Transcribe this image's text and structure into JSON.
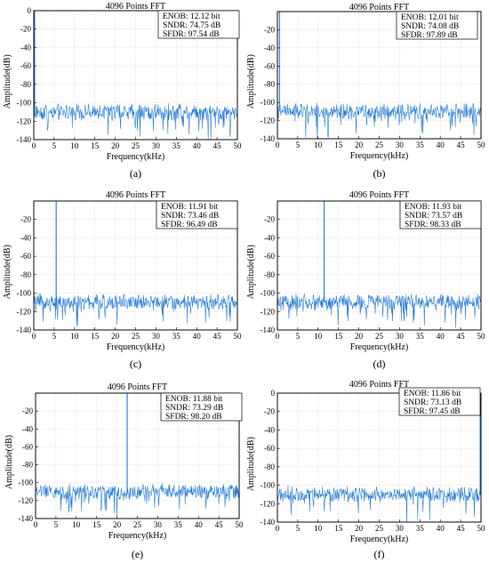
{
  "colors": {
    "trace": "#1f77d4",
    "frame": "#000000"
  },
  "chart_data": [
    {
      "type": "line",
      "label": "(a)",
      "title": "4096 Points FFT",
      "xlabel": "Frequency(kHz)",
      "ylabel": "Amplitude(dB)",
      "xlim": [
        0,
        50
      ],
      "ylim": [
        -140,
        0
      ],
      "xticks": [
        0,
        5,
        10,
        15,
        20,
        25,
        30,
        35,
        40,
        45,
        50
      ],
      "yticks": [
        0,
        -20,
        -40,
        -60,
        -80,
        -100,
        -120,
        -140
      ],
      "grid": true,
      "stats": [
        "ENOB: 12.12 bit",
        "SNDR: 74.75 dB",
        "SFDR: 97.54 dB"
      ],
      "signal_tone": {
        "freq_khz": 0.2,
        "amplitude_db": 0
      },
      "noise_floor_db": -110
    },
    {
      "type": "line",
      "label": "(b)",
      "title": "4096 Points FFT",
      "xlabel": "Frequency(kHz)",
      "ylabel": "Amplitude(dB)",
      "xlim": [
        0,
        50
      ],
      "ylim": [
        -140,
        0
      ],
      "xticks": [
        0,
        5,
        10,
        15,
        20,
        25,
        30,
        35,
        40,
        45,
        50
      ],
      "yticks": [
        -20,
        -40,
        -60,
        -80,
        -100,
        -120,
        -140
      ],
      "grid": true,
      "stats": [
        "ENOB: 12.01 bit",
        "SNDR: 74.08 dB",
        "SFDR: 97.89 dB"
      ],
      "signal_tone": {
        "freq_khz": 0.5,
        "amplitude_db": 0
      },
      "noise_floor_db": -110
    },
    {
      "type": "line",
      "label": "(c)",
      "title": "4096 Points FFT",
      "xlabel": "Frequency(kHz)",
      "ylabel": "Amplitude(dB)",
      "xlim": [
        0,
        50
      ],
      "ylim": [
        -140,
        0
      ],
      "xticks": [
        0,
        5,
        10,
        15,
        20,
        25,
        30,
        35,
        40,
        45,
        50
      ],
      "yticks": [
        -20,
        -40,
        -60,
        -80,
        -100,
        -120,
        -140
      ],
      "grid": true,
      "stats": [
        "ENOB: 11.91 bit",
        "SNDR: 73.46 dB",
        "SFDR: 96.49 dB"
      ],
      "signal_tone": {
        "freq_khz": 5.5,
        "amplitude_db": 0
      },
      "noise_floor_db": -110
    },
    {
      "type": "line",
      "label": "(d)",
      "title": "4096 Points FFT",
      "xlabel": "Frequency(kHz)",
      "ylabel": "Amplitude(dB)",
      "xlim": [
        0,
        50
      ],
      "ylim": [
        -140,
        0
      ],
      "xticks": [
        0,
        5,
        10,
        15,
        20,
        25,
        30,
        35,
        40,
        45,
        50
      ],
      "yticks": [
        -20,
        -40,
        -60,
        -80,
        -100,
        -120,
        -140
      ],
      "grid": true,
      "stats": [
        "ENOB: 11.93 bit",
        "SNDR: 73.57 dB",
        "SFDR: 98.33 dB"
      ],
      "signal_tone": {
        "freq_khz": 11.5,
        "amplitude_db": 0
      },
      "noise_floor_db": -110
    },
    {
      "type": "line",
      "label": "(e)",
      "title": "4096 Points FFT",
      "xlabel": "Frequency(kHz)",
      "ylabel": "Amplitude(dB)",
      "xlim": [
        0,
        50
      ],
      "ylim": [
        -140,
        0
      ],
      "xticks": [
        0,
        5,
        10,
        15,
        20,
        25,
        30,
        35,
        40,
        45,
        50
      ],
      "yticks": [
        -20,
        -40,
        -60,
        -80,
        -100,
        -120,
        -140
      ],
      "grid": true,
      "stats": [
        "ENOB: 11.88 bit",
        "SNDR: 73.29 dB",
        "SFDR: 98.20 dB"
      ],
      "signal_tone": {
        "freq_khz": 22.5,
        "amplitude_db": 0
      },
      "noise_floor_db": -110
    },
    {
      "type": "line",
      "label": "(f)",
      "title": "4096 Points FFT",
      "xlabel": "Frequency(kHz)",
      "ylabel": "Amplitude(dB)",
      "xlim": [
        0,
        50
      ],
      "ylim": [
        -140,
        0
      ],
      "xticks": [
        0,
        5,
        10,
        15,
        20,
        25,
        30,
        35,
        40,
        45,
        50
      ],
      "yticks": [
        0,
        -20,
        -40,
        -60,
        -80,
        -100,
        -120,
        -140
      ],
      "grid": true,
      "stats": [
        "ENOB: 11.86 bit",
        "SNDR: 73.13 dB",
        "SFDR: 97.45 dB"
      ],
      "signal_tone": {
        "freq_khz": 49.8,
        "amplitude_db": 0
      },
      "noise_floor_db": -110
    }
  ]
}
